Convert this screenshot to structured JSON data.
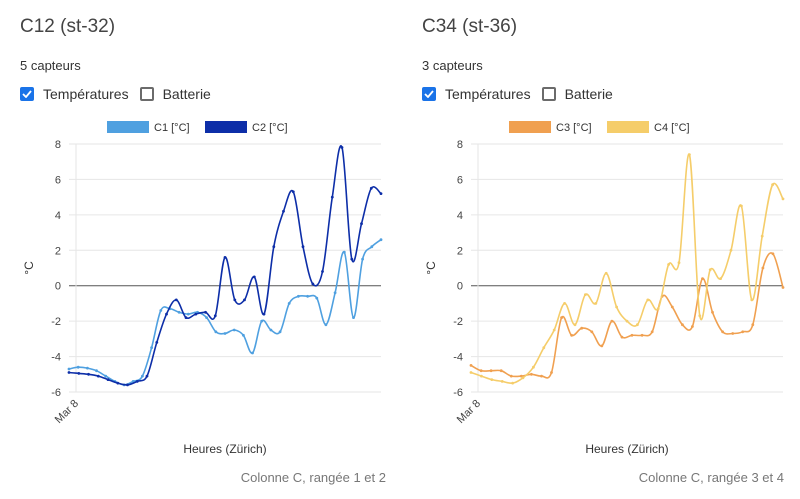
{
  "panels": [
    {
      "title": "C12 (st-32)",
      "sensor_count": "5 capteurs",
      "checkboxes": [
        {
          "label": "Températures",
          "checked": true
        },
        {
          "label": "Batterie",
          "checked": false
        }
      ],
      "footnote": "Colonne C, rangée 1 et 2"
    },
    {
      "title": "C34 (st-36)",
      "sensor_count": "3 capteurs",
      "checkboxes": [
        {
          "label": "Températures",
          "checked": true
        },
        {
          "label": "Batterie",
          "checked": false
        }
      ],
      "footnote": "Colonne C, rangée 3 et 4"
    }
  ],
  "chart_data": [
    {
      "type": "line",
      "ylabel": "°C",
      "xlabel": "Heures (Zürich)",
      "x_tick_labels": [
        "Mar 8"
      ],
      "ylim": [
        -6,
        8
      ],
      "yticks": [
        -6,
        -4,
        -2,
        0,
        2,
        4,
        6,
        8
      ],
      "grid": true,
      "legend": "top",
      "series": [
        {
          "name": "C1 [°C]",
          "color": "#4fa0e0",
          "values": [
            -4.7,
            -4.6,
            -4.65,
            -4.8,
            -5.1,
            -5.4,
            -5.6,
            -5.4,
            -5.1,
            -3.5,
            -1.4,
            -1.3,
            -1.5,
            -1.6,
            -1.5,
            -1.8,
            -2.6,
            -2.7,
            -2.5,
            -2.8,
            -3.8,
            -2.0,
            -2.5,
            -2.6,
            -1.0,
            -0.6,
            -0.6,
            -0.7,
            -2.2,
            -0.4,
            1.9,
            -1.8,
            1.5,
            2.2,
            2.6
          ]
        },
        {
          "name": "C2 [°C]",
          "color": "#0d2ea8",
          "values": [
            -4.9,
            -4.95,
            -5.0,
            -5.1,
            -5.3,
            -5.5,
            -5.6,
            -5.4,
            -5.1,
            -3.2,
            -1.6,
            -0.8,
            -1.8,
            -1.6,
            -1.5,
            -1.7,
            1.6,
            -0.8,
            -0.8,
            0.5,
            -1.6,
            2.2,
            4.2,
            5.3,
            2.2,
            0.1,
            0.8,
            5.0,
            7.8,
            1.5,
            3.5,
            5.5,
            5.2
          ]
        }
      ]
    },
    {
      "type": "line",
      "ylabel": "°C",
      "xlabel": "Heures (Zürich)",
      "x_tick_labels": [
        "Mar 8"
      ],
      "ylim": [
        -6,
        8
      ],
      "yticks": [
        -6,
        -4,
        -2,
        0,
        2,
        4,
        6,
        8
      ],
      "grid": true,
      "legend": "top",
      "series": [
        {
          "name": "C3 [°C]",
          "color": "#f0a050",
          "values": [
            -4.5,
            -4.8,
            -4.8,
            -4.8,
            -5.1,
            -5.1,
            -5.0,
            -5.1,
            -4.9,
            -1.8,
            -2.8,
            -2.4,
            -2.6,
            -3.4,
            -2.0,
            -2.9,
            -2.8,
            -2.8,
            -2.6,
            -0.6,
            -1.2,
            -2.2,
            -2.3,
            0.4,
            -1.5,
            -2.6,
            -2.7,
            -2.6,
            -2.2,
            1.0,
            1.8,
            -0.1
          ]
        },
        {
          "name": "C4 [°C]",
          "color": "#f5cd6a",
          "values": [
            -4.9,
            -5.1,
            -5.3,
            -5.4,
            -5.5,
            -5.2,
            -4.6,
            -3.5,
            -2.5,
            -1.0,
            -2.2,
            -0.5,
            -1.0,
            0.7,
            -1.2,
            -2.0,
            -2.2,
            -0.8,
            -1.3,
            1.2,
            1.3,
            7.4,
            -1.7,
            0.9,
            0.4,
            2.0,
            4.5,
            -0.8,
            2.8,
            5.7,
            4.9
          ]
        }
      ]
    }
  ]
}
